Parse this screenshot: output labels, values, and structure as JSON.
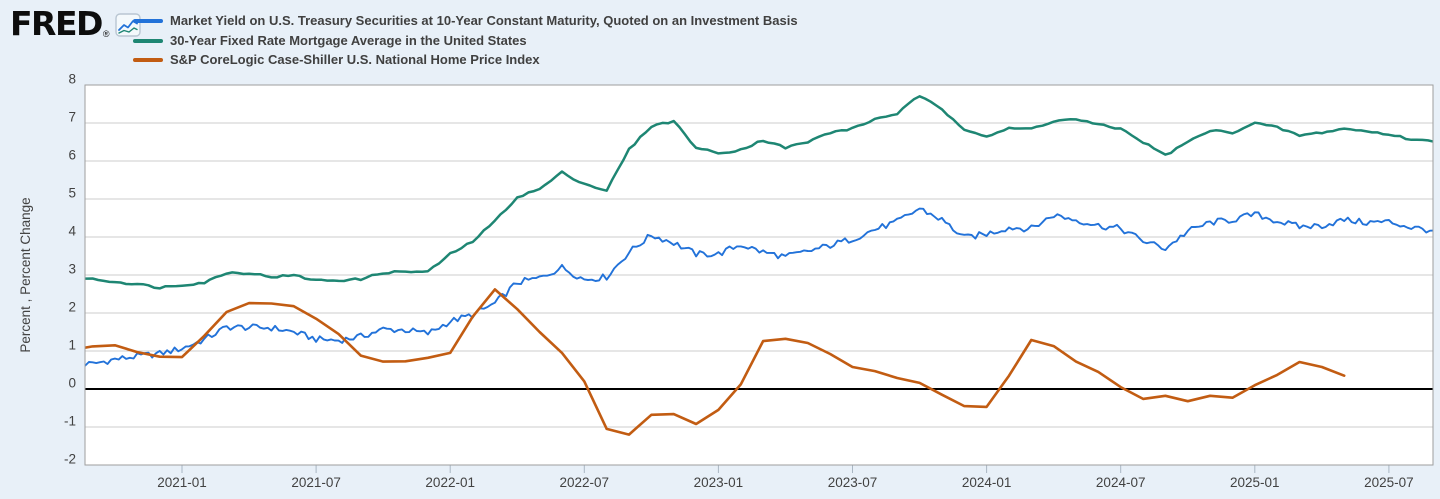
{
  "brand": {
    "logo_text": "FRED",
    "registered_mark": "®",
    "logo_icon": "fred-sparkline-icon"
  },
  "legend": [
    {
      "color": "#2272d9"
    },
    {
      "color": "#1e8673"
    },
    {
      "color": "#c25c12"
    }
  ],
  "chart_data": {
    "type": "line",
    "title": "",
    "xlabel": "",
    "ylabel": "Percent , Percent Change",
    "ylim": [
      -2,
      8
    ],
    "yticks": [
      8,
      7,
      6,
      5,
      4,
      3,
      2,
      1,
      0,
      -1,
      -2
    ],
    "grid": true,
    "zero_line": true,
    "legend_position": "top-left",
    "x_start_month": "2020-08",
    "x_ticks": [
      {
        "label": "2021-01",
        "m": 5
      },
      {
        "label": "2021-07",
        "m": 11
      },
      {
        "label": "2022-01",
        "m": 17
      },
      {
        "label": "2022-07",
        "m": 23
      },
      {
        "label": "2023-01",
        "m": 29
      },
      {
        "label": "2023-07",
        "m": 35
      },
      {
        "label": "2024-01",
        "m": 41
      },
      {
        "label": "2024-07",
        "m": 47
      },
      {
        "label": "2025-01",
        "m": 53
      },
      {
        "label": "2025-07",
        "m": 59
      }
    ],
    "series": [
      {
        "id": "treasury-10yr",
        "name": "Market Yield on U.S. Treasury Securities at 10-Year Constant Maturity, Quoted on an Investment Basis",
        "color": "#2272d9",
        "frequency": "daily",
        "start_month": "2020-08",
        "values": [
          0.64,
          0.66,
          0.78,
          0.86,
          0.93,
          1.07,
          1.3,
          1.63,
          1.62,
          1.61,
          1.5,
          1.31,
          1.28,
          1.38,
          1.57,
          1.55,
          1.46,
          1.78,
          1.95,
          2.25,
          2.8,
          2.92,
          3.2,
          2.88,
          2.95,
          3.6,
          4.05,
          3.85,
          3.55,
          3.55,
          3.8,
          3.6,
          3.48,
          3.62,
          3.78,
          3.95,
          4.2,
          4.4,
          4.75,
          4.45,
          3.98,
          4.08,
          4.25,
          4.22,
          4.58,
          4.45,
          4.3,
          4.22,
          3.9,
          3.7,
          4.15,
          4.38,
          4.45,
          4.6,
          4.42,
          4.27,
          4.3,
          4.45,
          4.38,
          4.4,
          4.25,
          4.17
        ]
      },
      {
        "id": "mortgage-30yr",
        "name": "30-Year Fixed Rate Mortgage Average in the United States",
        "color": "#1e8673",
        "frequency": "weekly",
        "start_month": "2020-08",
        "values": [
          2.96,
          2.89,
          2.82,
          2.76,
          2.67,
          2.74,
          2.8,
          3.06,
          3.05,
          2.95,
          2.99,
          2.86,
          2.86,
          2.89,
          3.06,
          3.09,
          3.08,
          3.55,
          3.88,
          4.42,
          5.05,
          5.26,
          5.7,
          5.4,
          5.22,
          6.3,
          6.92,
          7.05,
          6.35,
          6.2,
          6.3,
          6.55,
          6.35,
          6.5,
          6.75,
          6.85,
          7.1,
          7.25,
          7.72,
          7.35,
          6.85,
          6.65,
          6.85,
          6.85,
          7.05,
          7.1,
          6.95,
          6.85,
          6.5,
          6.15,
          6.5,
          6.8,
          6.75,
          7.0,
          6.88,
          6.67,
          6.75,
          6.85,
          6.78,
          6.7,
          6.57,
          6.51
        ]
      },
      {
        "id": "case-shiller-hpi",
        "name": "S&P CoreLogic Case-Shiller U.S. National Home Price Index",
        "color": "#c25c12",
        "frequency": "monthly",
        "start_month": "2020-08",
        "values": [
          1.02,
          1.12,
          1.15,
          0.97,
          0.85,
          0.84,
          1.4,
          2.03,
          2.26,
          2.25,
          2.18,
          1.85,
          1.45,
          0.88,
          0.72,
          0.73,
          0.82,
          0.95,
          1.9,
          2.62,
          2.1,
          1.5,
          0.95,
          0.2,
          -1.05,
          -1.2,
          -0.68,
          -0.66,
          -0.92,
          -0.55,
          0.12,
          1.26,
          1.32,
          1.21,
          0.92,
          0.58,
          0.47,
          0.29,
          0.16,
          -0.15,
          -0.45,
          -0.47,
          0.35,
          1.29,
          1.13,
          0.72,
          0.45,
          0.05,
          -0.26,
          -0.18,
          -0.32,
          -0.18,
          -0.23,
          0.1,
          0.37,
          0.71,
          0.58,
          0.35
        ]
      }
    ]
  },
  "style": {
    "background": "#e8f0f8",
    "plot_background": "#ffffff",
    "gridline_color": "#cccccc",
    "border_color": "#9e9e9e",
    "zero_line_color": "#000000",
    "tick_mark_color": "#a9b6c3",
    "label_color": "#424242"
  }
}
